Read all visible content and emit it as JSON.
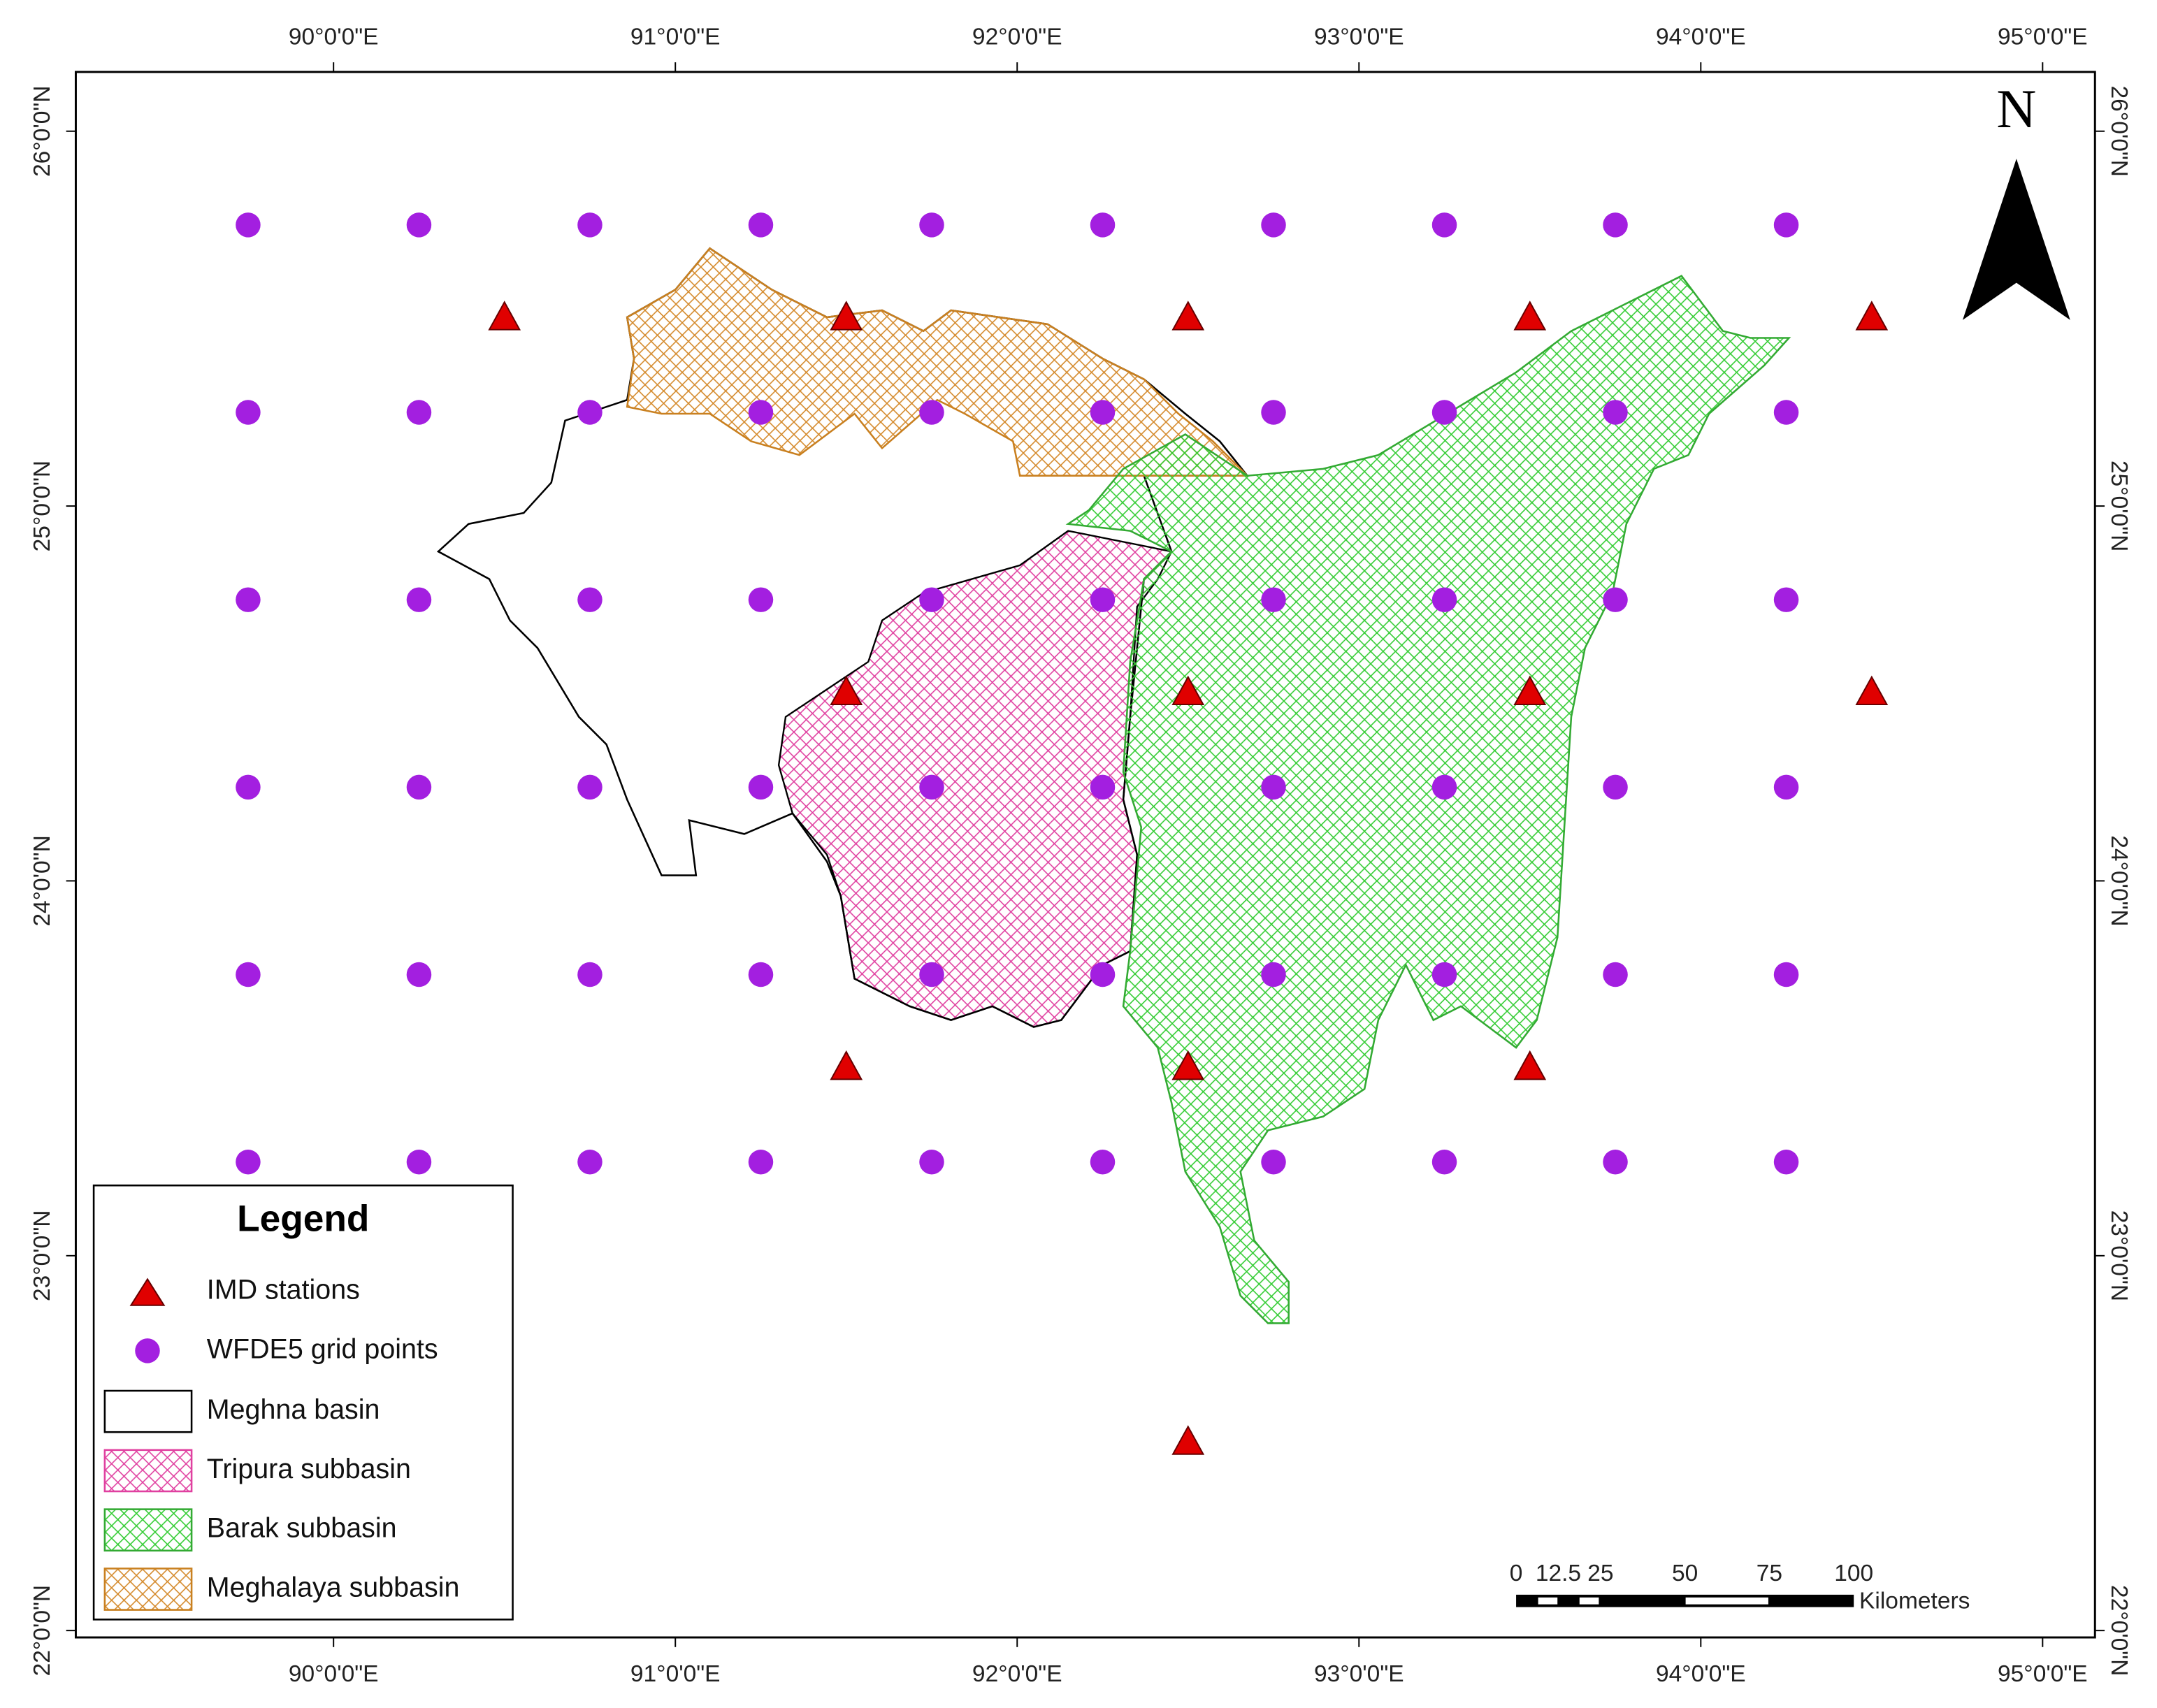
{
  "map": {
    "lon_ticks": [
      {
        "value": 90,
        "label": "90°0'0\"E"
      },
      {
        "value": 91,
        "label": "91°0'0\"E"
      },
      {
        "value": 92,
        "label": "92°0'0\"E"
      },
      {
        "value": 93,
        "label": "93°0'0\"E"
      },
      {
        "value": 94,
        "label": "94°0'0\"E"
      },
      {
        "value": 95,
        "label": "95°0'0\"E"
      }
    ],
    "lat_ticks": [
      {
        "value": 22,
        "label": "22°0'0\"N"
      },
      {
        "value": 23,
        "label": "23°0'0\"N"
      },
      {
        "value": 24,
        "label": "24°0'0\"N"
      },
      {
        "value": 25,
        "label": "25°0'0\"N"
      },
      {
        "value": 26,
        "label": "26°0'0\"N"
      }
    ],
    "north": "N",
    "legend": {
      "title": "Legend",
      "items": [
        "IMD stations",
        "WFDE5 grid points",
        "Meghna basin",
        "Tripura subbasin",
        "Barak subbasin",
        "Meghalaya subbasin"
      ]
    },
    "scale": {
      "ticks": [
        0,
        12.5,
        25,
        50,
        75,
        100
      ],
      "unit": "Kilometers"
    },
    "imd_stations": {
      "lon": [
        90.5,
        91.5,
        92.5,
        93.5,
        94.5,
        91.5,
        92.5,
        93.5,
        94.5,
        91.5,
        92.5,
        93.5,
        92.5
      ],
      "lat": [
        25.5,
        25.5,
        25.5,
        25.5,
        25.5,
        24.5,
        24.5,
        24.5,
        24.5,
        23.5,
        23.5,
        23.5,
        22.5
      ]
    },
    "grid_points": {
      "lon": [
        89.75,
        90.25,
        90.75,
        91.25,
        91.75,
        92.25,
        92.75,
        93.25,
        93.75,
        94.25
      ],
      "lat": [
        25.75,
        25.25,
        24.75,
        24.25,
        23.75,
        23.25
      ]
    }
  }
}
